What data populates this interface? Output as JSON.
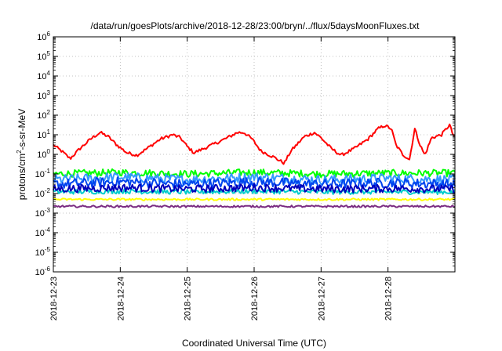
{
  "chart_data": {
    "type": "line",
    "title": "/data/run/goesPlots/archive/2018-12-28/23:00/bryn/../flux/5daysMoonFluxes.txt",
    "xlabel": "Coordinated Universal Time (UTC)",
    "ylabel": {
      "prefix": "protons/cm",
      "sup": "2",
      "suffix": "-s-sr-MeV"
    },
    "yscale": "log",
    "ylim": [
      1e-06,
      1000000.0
    ],
    "xlim": [
      0,
      6
    ],
    "grid": true,
    "x_ticks": [
      {
        "x": 0,
        "label": "2018-12-23"
      },
      {
        "x": 1,
        "label": "2018-12-24"
      },
      {
        "x": 2,
        "label": "2018-12-25"
      },
      {
        "x": 3,
        "label": "2018-12-26"
      },
      {
        "x": 4,
        "label": "2018-12-27"
      },
      {
        "x": 5,
        "label": "2018-12-28"
      }
    ],
    "y_ticks": [
      {
        "value": 1000000.0,
        "base": "10",
        "exp": "6"
      },
      {
        "value": 100000.0,
        "base": "10",
        "exp": "5"
      },
      {
        "value": 10000.0,
        "base": "10",
        "exp": "4"
      },
      {
        "value": 1000.0,
        "base": "10",
        "exp": "3"
      },
      {
        "value": 100.0,
        "base": "10",
        "exp": "2"
      },
      {
        "value": 10.0,
        "base": "10",
        "exp": "1"
      },
      {
        "value": 1.0,
        "base": "10",
        "exp": "0"
      },
      {
        "value": 0.1,
        "base": "10",
        "exp": "-1"
      },
      {
        "value": 0.01,
        "base": "10",
        "exp": "-2"
      },
      {
        "value": 0.001,
        "base": "10",
        "exp": "-3"
      },
      {
        "value": 0.0001,
        "base": "10",
        "exp": "-4"
      },
      {
        "value": 1e-05,
        "base": "10",
        "exp": "-5"
      },
      {
        "value": 1e-06,
        "base": "10",
        "exp": "-6"
      }
    ],
    "series": [
      {
        "color": "#ff0000",
        "noise": 0.08,
        "points": [
          [
            0.0,
            3
          ],
          [
            0.12,
            1.5
          ],
          [
            0.25,
            0.6
          ],
          [
            0.4,
            2
          ],
          [
            0.58,
            7
          ],
          [
            0.7,
            13
          ],
          [
            0.82,
            8
          ],
          [
            0.95,
            3
          ],
          [
            1.1,
            1.2
          ],
          [
            1.25,
            0.9
          ],
          [
            1.4,
            2
          ],
          [
            1.6,
            6
          ],
          [
            1.78,
            10
          ],
          [
            1.9,
            7
          ],
          [
            2.0,
            2.5
          ],
          [
            2.1,
            1.2
          ],
          [
            2.25,
            2
          ],
          [
            2.45,
            4
          ],
          [
            2.6,
            7
          ],
          [
            2.75,
            13
          ],
          [
            2.85,
            13
          ],
          [
            2.97,
            6
          ],
          [
            3.1,
            1.5
          ],
          [
            3.3,
            0.7
          ],
          [
            3.45,
            0.35
          ],
          [
            3.55,
            1.5
          ],
          [
            3.75,
            8
          ],
          [
            3.9,
            13
          ],
          [
            4.0,
            7
          ],
          [
            4.15,
            2
          ],
          [
            4.3,
            0.9
          ],
          [
            4.5,
            2
          ],
          [
            4.7,
            6
          ],
          [
            4.85,
            20
          ],
          [
            4.95,
            30
          ],
          [
            5.05,
            20
          ],
          [
            5.12,
            3
          ],
          [
            5.22,
            1
          ],
          [
            5.32,
            0.55
          ],
          [
            5.4,
            20
          ],
          [
            5.48,
            3
          ],
          [
            5.55,
            0.9
          ],
          [
            5.65,
            7
          ],
          [
            5.8,
            10
          ],
          [
            5.87,
            20
          ],
          [
            5.92,
            32
          ],
          [
            5.97,
            10
          ],
          [
            6.0,
            8
          ]
        ]
      },
      {
        "color": "#00ff00",
        "noise": 0.18,
        "points": [
          [
            0.0,
            0.1
          ],
          [
            1.0,
            0.12
          ],
          [
            2.0,
            0.1
          ],
          [
            3.0,
            0.12
          ],
          [
            4.0,
            0.1
          ],
          [
            5.0,
            0.11
          ],
          [
            6.0,
            0.11
          ]
        ]
      },
      {
        "color": "#3399ff",
        "noise": 0.25,
        "points": [
          [
            0.0,
            0.05
          ],
          [
            1.0,
            0.07
          ],
          [
            2.0,
            0.05
          ],
          [
            3.0,
            0.07
          ],
          [
            4.0,
            0.05
          ],
          [
            5.0,
            0.06
          ],
          [
            6.0,
            0.05
          ]
        ]
      },
      {
        "color": "#0044ee",
        "noise": 0.25,
        "points": [
          [
            0.0,
            0.03
          ],
          [
            1.0,
            0.04
          ],
          [
            2.0,
            0.03
          ],
          [
            3.0,
            0.04
          ],
          [
            4.0,
            0.03
          ],
          [
            5.0,
            0.035
          ],
          [
            6.0,
            0.03
          ]
        ]
      },
      {
        "color": "#00cccc",
        "noise": 0.12,
        "points": [
          [
            0.0,
            0.012
          ],
          [
            1.0,
            0.013
          ],
          [
            2.0,
            0.012
          ],
          [
            3.0,
            0.013
          ],
          [
            4.0,
            0.012
          ],
          [
            5.0,
            0.012
          ],
          [
            6.0,
            0.012
          ]
        ]
      },
      {
        "color": "#0000bb",
        "noise": 0.2,
        "points": [
          [
            0.0,
            0.017
          ],
          [
            1.0,
            0.02
          ],
          [
            2.0,
            0.017
          ],
          [
            3.0,
            0.02
          ],
          [
            4.0,
            0.017
          ],
          [
            5.0,
            0.018
          ],
          [
            6.0,
            0.017
          ]
        ]
      },
      {
        "color": "#ffff00",
        "noise": 0.05,
        "points": [
          [
            0.0,
            0.005
          ],
          [
            6.0,
            0.005
          ]
        ]
      },
      {
        "color": "#7b2d82",
        "noise": 0.05,
        "points": [
          [
            0.0,
            0.0022
          ],
          [
            6.0,
            0.0022
          ]
        ]
      }
    ]
  }
}
